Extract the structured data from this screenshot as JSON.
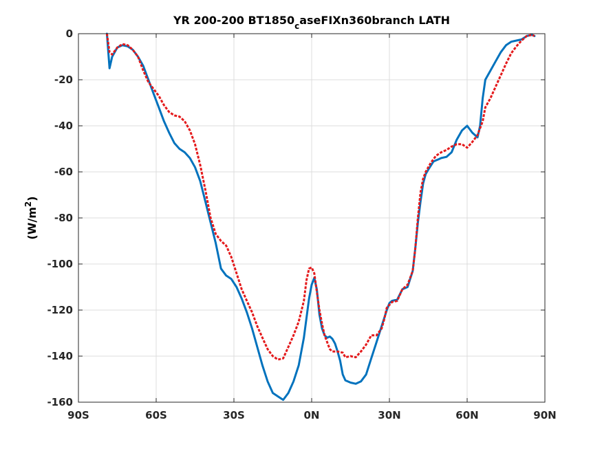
{
  "chart_data": {
    "type": "line",
    "title_main": "YR 200-200 BT1850",
    "title_sub": "c",
    "title_rest": "aseFIXn360branch LATH",
    "xlabel": "",
    "ylabel_main": "(W/m",
    "ylabel_sup": "2",
    "ylabel_end": ")",
    "xlim": [
      -90,
      90
    ],
    "ylim": [
      -160,
      0
    ],
    "x_ticks": [
      {
        "value": -90,
        "label": "90S"
      },
      {
        "value": -60,
        "label": "60S"
      },
      {
        "value": -30,
        "label": "30S"
      },
      {
        "value": 0,
        "label": "0N"
      },
      {
        "value": 30,
        "label": "30N"
      },
      {
        "value": 60,
        "label": "60N"
      },
      {
        "value": 90,
        "label": "90N"
      }
    ],
    "y_ticks": [
      {
        "value": 0,
        "label": "0"
      },
      {
        "value": -20,
        "label": "-20"
      },
      {
        "value": -40,
        "label": "-40"
      },
      {
        "value": -60,
        "label": "-60"
      },
      {
        "value": -80,
        "label": "-80"
      },
      {
        "value": -100,
        "label": "-100"
      },
      {
        "value": -120,
        "label": "-120"
      },
      {
        "value": -140,
        "label": "-140"
      },
      {
        "value": -160,
        "label": "-160"
      }
    ],
    "grid": true,
    "series": [
      {
        "color": "#0072BD",
        "style": "solid",
        "points": [
          [
            -79,
            0
          ],
          [
            -78,
            -15
          ],
          [
            -77,
            -10
          ],
          [
            -75,
            -6
          ],
          [
            -73,
            -5
          ],
          [
            -71,
            -5.5
          ],
          [
            -69,
            -7
          ],
          [
            -67,
            -10
          ],
          [
            -65,
            -14
          ],
          [
            -63,
            -20
          ],
          [
            -61,
            -26
          ],
          [
            -59,
            -32
          ],
          [
            -57,
            -38
          ],
          [
            -55,
            -43
          ],
          [
            -53,
            -47.5
          ],
          [
            -51,
            -50
          ],
          [
            -49,
            -51.5
          ],
          [
            -47,
            -54
          ],
          [
            -45,
            -58
          ],
          [
            -43,
            -64
          ],
          [
            -41,
            -73
          ],
          [
            -39,
            -82
          ],
          [
            -37,
            -91
          ],
          [
            -35,
            -102
          ],
          [
            -33,
            -105
          ],
          [
            -31,
            -106.5
          ],
          [
            -29,
            -110
          ],
          [
            -27,
            -115
          ],
          [
            -25,
            -121
          ],
          [
            -23,
            -128
          ],
          [
            -21,
            -136
          ],
          [
            -19,
            -144
          ],
          [
            -17,
            -151
          ],
          [
            -15,
            -156
          ],
          [
            -13,
            -157.5
          ],
          [
            -11,
            -159
          ],
          [
            -9,
            -156
          ],
          [
            -7,
            -151
          ],
          [
            -5,
            -144
          ],
          [
            -3,
            -132
          ],
          [
            -1,
            -115
          ],
          [
            0,
            -109
          ],
          [
            1,
            -106
          ],
          [
            2,
            -111
          ],
          [
            3,
            -122
          ],
          [
            4,
            -128
          ],
          [
            5,
            -131
          ],
          [
            6,
            -132
          ],
          [
            7,
            -131.5
          ],
          [
            8,
            -132.5
          ],
          [
            9,
            -134.5
          ],
          [
            10,
            -138
          ],
          [
            11,
            -142
          ],
          [
            12,
            -148
          ],
          [
            13,
            -150.5
          ],
          [
            15,
            -151.5
          ],
          [
            17,
            -152
          ],
          [
            19,
            -151
          ],
          [
            21,
            -148
          ],
          [
            23,
            -141
          ],
          [
            25,
            -134
          ],
          [
            27,
            -127
          ],
          [
            29,
            -120
          ],
          [
            30,
            -117
          ],
          [
            31,
            -116
          ],
          [
            33,
            -115.5
          ],
          [
            35,
            -111
          ],
          [
            37,
            -110
          ],
          [
            39,
            -103
          ],
          [
            40,
            -93
          ],
          [
            41,
            -82
          ],
          [
            42,
            -73
          ],
          [
            43,
            -65
          ],
          [
            44,
            -61
          ],
          [
            45,
            -59
          ],
          [
            47,
            -55.5
          ],
          [
            49,
            -54.5
          ],
          [
            50,
            -54
          ],
          [
            52,
            -53.5
          ],
          [
            54,
            -51.5
          ],
          [
            56,
            -46
          ],
          [
            58,
            -42
          ],
          [
            60,
            -40
          ],
          [
            62,
            -43
          ],
          [
            64,
            -45
          ],
          [
            65,
            -40
          ],
          [
            66,
            -28
          ],
          [
            67,
            -20
          ],
          [
            69,
            -16
          ],
          [
            71,
            -12
          ],
          [
            73,
            -8
          ],
          [
            75,
            -5
          ],
          [
            77,
            -3.5
          ],
          [
            79,
            -3
          ],
          [
            81,
            -2.5
          ],
          [
            83,
            -1
          ],
          [
            85,
            -0.5
          ],
          [
            86,
            -1
          ]
        ]
      },
      {
        "color": "#E41A1C",
        "style": "dashed",
        "points": [
          [
            -79,
            0
          ],
          [
            -78,
            -8
          ],
          [
            -77,
            -9
          ],
          [
            -75,
            -6
          ],
          [
            -73,
            -4.5
          ],
          [
            -71,
            -5
          ],
          [
            -69,
            -7
          ],
          [
            -67,
            -10
          ],
          [
            -65,
            -16
          ],
          [
            -63,
            -21
          ],
          [
            -61,
            -24
          ],
          [
            -59,
            -27
          ],
          [
            -57,
            -31
          ],
          [
            -55,
            -34
          ],
          [
            -53,
            -35.5
          ],
          [
            -51,
            -36
          ],
          [
            -49,
            -38
          ],
          [
            -47,
            -42
          ],
          [
            -45,
            -48
          ],
          [
            -43,
            -57
          ],
          [
            -41,
            -68
          ],
          [
            -39,
            -80
          ],
          [
            -37,
            -87
          ],
          [
            -35,
            -90
          ],
          [
            -33,
            -92
          ],
          [
            -31,
            -97
          ],
          [
            -29,
            -104
          ],
          [
            -27,
            -111
          ],
          [
            -25,
            -116
          ],
          [
            -23,
            -121
          ],
          [
            -21,
            -127
          ],
          [
            -19,
            -132
          ],
          [
            -17,
            -137
          ],
          [
            -15,
            -140
          ],
          [
            -13,
            -141.5
          ],
          [
            -11,
            -141
          ],
          [
            -9,
            -136
          ],
          [
            -7,
            -131
          ],
          [
            -5,
            -125
          ],
          [
            -3,
            -116
          ],
          [
            -2,
            -107
          ],
          [
            -1,
            -102
          ],
          [
            0,
            -101.5
          ],
          [
            1,
            -104
          ],
          [
            2,
            -112
          ],
          [
            3,
            -120
          ],
          [
            4,
            -126
          ],
          [
            5,
            -131
          ],
          [
            6,
            -134
          ],
          [
            7,
            -137
          ],
          [
            8,
            -138
          ],
          [
            10,
            -138
          ],
          [
            12,
            -138.5
          ],
          [
            13,
            -140.5
          ],
          [
            15,
            -140
          ],
          [
            17,
            -140.5
          ],
          [
            19,
            -138
          ],
          [
            21,
            -135
          ],
          [
            23,
            -131
          ],
          [
            25,
            -131
          ],
          [
            27,
            -128
          ],
          [
            28,
            -124
          ],
          [
            29,
            -119
          ],
          [
            31,
            -116.5
          ],
          [
            33,
            -116
          ],
          [
            35,
            -111
          ],
          [
            37,
            -109
          ],
          [
            39,
            -103
          ],
          [
            40,
            -93
          ],
          [
            41,
            -80
          ],
          [
            42,
            -69
          ],
          [
            43,
            -63
          ],
          [
            44,
            -60
          ],
          [
            46,
            -56
          ],
          [
            48,
            -53
          ],
          [
            50,
            -51.5
          ],
          [
            52,
            -50.5
          ],
          [
            54,
            -49
          ],
          [
            56,
            -48
          ],
          [
            58,
            -48
          ],
          [
            60,
            -49.5
          ],
          [
            62,
            -47
          ],
          [
            64,
            -44
          ],
          [
            66,
            -38
          ],
          [
            67,
            -32
          ],
          [
            69,
            -28
          ],
          [
            71,
            -23
          ],
          [
            73,
            -18
          ],
          [
            75,
            -13
          ],
          [
            77,
            -8.5
          ],
          [
            79,
            -5.5
          ],
          [
            81,
            -3
          ],
          [
            83,
            -1
          ],
          [
            85,
            -0.5
          ],
          [
            86,
            -1
          ]
        ]
      }
    ]
  }
}
